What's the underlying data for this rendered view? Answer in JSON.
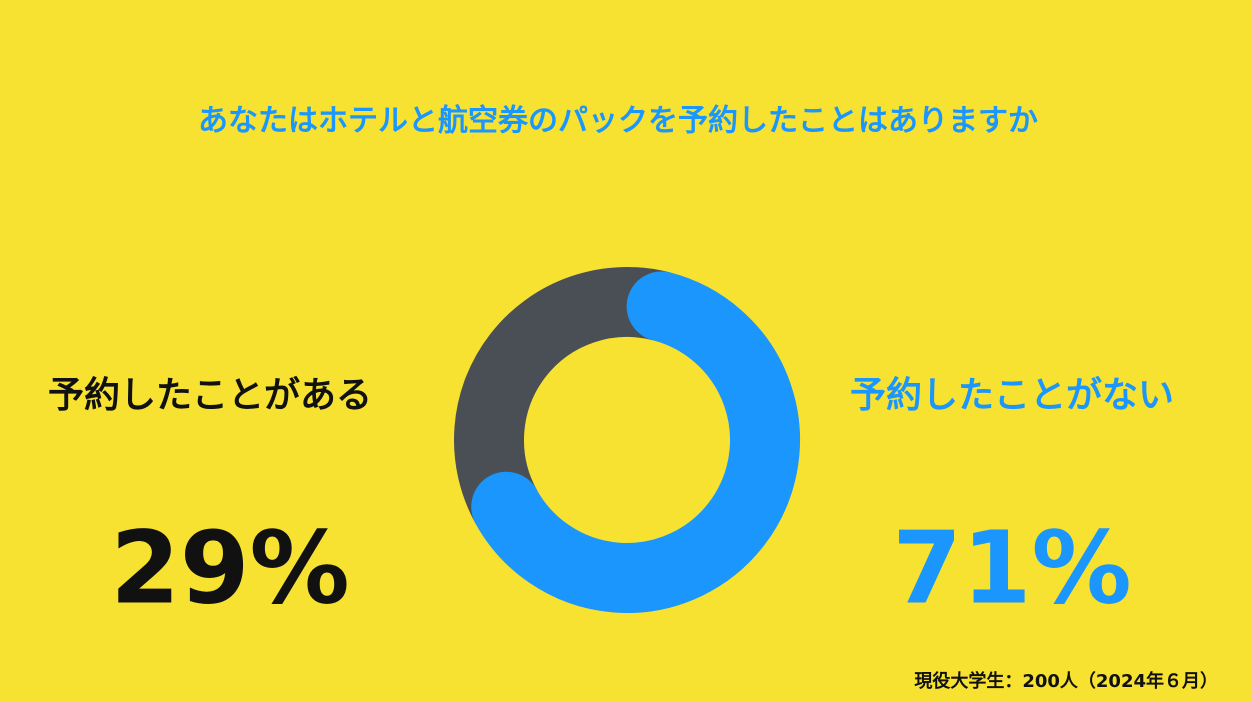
{
  "chart_data": {
    "type": "donut",
    "title": "あなたはホテルと航空券のパックを予約したことはありますか",
    "categories": [
      "予約したことがある",
      "予約したことがない"
    ],
    "values": [
      29,
      71
    ],
    "value_labels": [
      "29%",
      "71%"
    ],
    "colors": [
      "#4a4f55",
      "#1a96fc"
    ],
    "source": "現役大学生：200人（2024年６月）"
  }
}
